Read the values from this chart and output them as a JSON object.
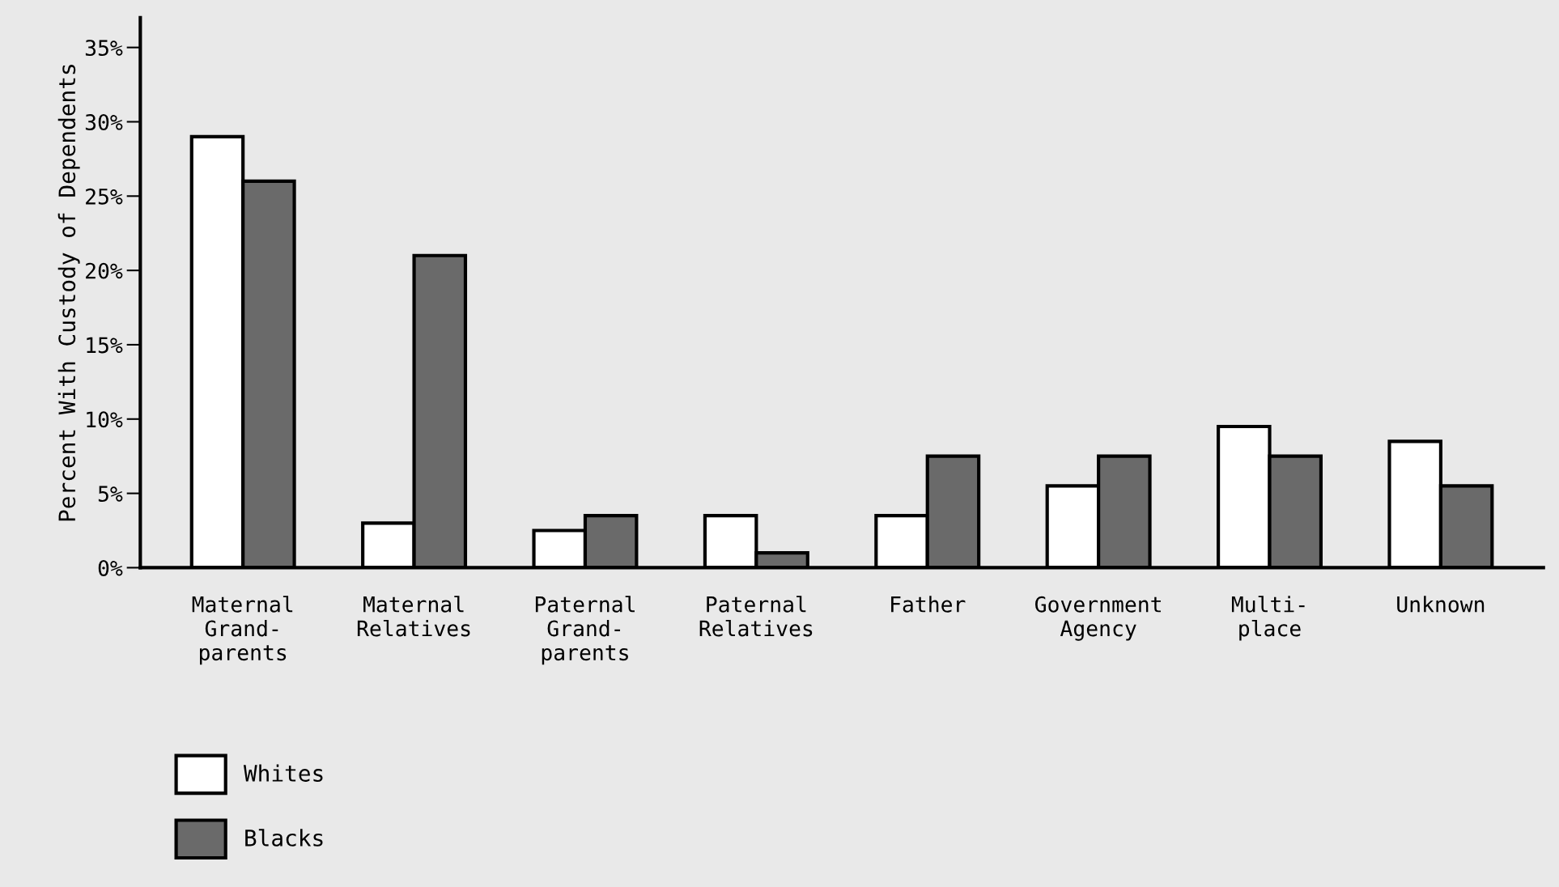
{
  "chart_data": {
    "type": "bar",
    "ylabel": "Percent With Custody of Dependents",
    "categories": [
      "Maternal\nGrand-\nparents",
      "Maternal\nRelatives",
      "Paternal\nGrand-\nparents",
      "Paternal\nRelatives",
      "Father",
      "Government\nAgency",
      "Multi-\nplace",
      "Unknown"
    ],
    "series": [
      {
        "name": "Whites",
        "color": "#ffffff",
        "values": [
          29,
          3,
          2.5,
          3.5,
          3.5,
          5.5,
          9.5,
          8.5
        ]
      },
      {
        "name": "Blacks",
        "color": "#6a6a6a",
        "values": [
          26,
          21,
          3.5,
          1,
          7.5,
          7.5,
          7.5,
          5.5
        ]
      }
    ],
    "ylim": [
      0,
      37
    ],
    "yticks": [
      {
        "value": 0,
        "label": "0%"
      },
      {
        "value": 5,
        "label": "5%"
      },
      {
        "value": 10,
        "label": "10%"
      },
      {
        "value": 15,
        "label": "15%"
      },
      {
        "value": 20,
        "label": "20%"
      },
      {
        "value": 25,
        "label": "25%"
      },
      {
        "value": 30,
        "label": "30%"
      },
      {
        "value": 35,
        "label": "35%"
      }
    ],
    "grid": false,
    "legend": "bottom left"
  }
}
